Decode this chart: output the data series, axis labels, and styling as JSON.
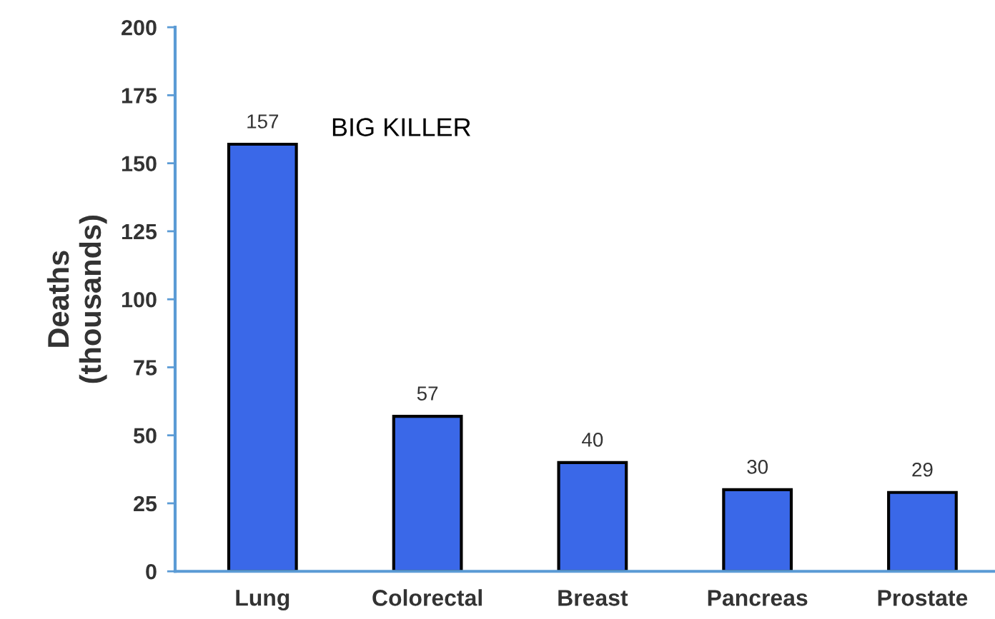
{
  "chart_data": {
    "type": "bar",
    "ylabel": "Deaths\n(thousands)",
    "categories": [
      "Lung",
      "Colorectal",
      "Breast",
      "Pancreas",
      "Prostate"
    ],
    "values": [
      157,
      57,
      40,
      30,
      29
    ],
    "color": "#3a68e8",
    "ylim": [
      0,
      200
    ],
    "yticks": [
      0,
      25,
      50,
      75,
      100,
      125,
      150,
      175,
      200
    ],
    "data_labels": true,
    "grid": false,
    "annotations": [
      "BIG KILLER"
    ]
  }
}
